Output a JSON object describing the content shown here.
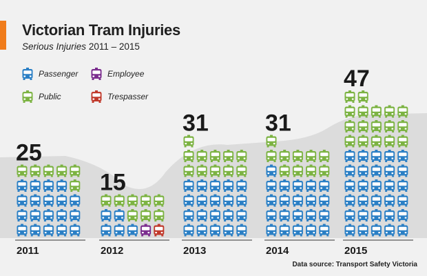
{
  "chart_data": {
    "type": "bar",
    "title": "Victorian Tram Injuries",
    "subtitle_label": "Serious Injuries",
    "subtitle_years": "2011 – 2015",
    "categories": [
      "2011",
      "2012",
      "2013",
      "2014",
      "2015"
    ],
    "totals": [
      25,
      15,
      31,
      31,
      47
    ],
    "series": [
      {
        "name": "Passenger",
        "color": "#2a7fc5",
        "values": [
          19,
          5,
          20,
          21,
          30
        ]
      },
      {
        "name": "Public",
        "color": "#7cb342",
        "values": [
          6,
          8,
          11,
          10,
          17
        ]
      },
      {
        "name": "Employee",
        "color": "#7b2d8e",
        "values": [
          0,
          1,
          0,
          0,
          0
        ]
      },
      {
        "name": "Trespasser",
        "color": "#c0392b",
        "values": [
          0,
          1,
          0,
          0,
          0
        ]
      }
    ],
    "icon": "tram-icon",
    "legend_position": "top-left"
  },
  "source": "Data source: Transport Safety Victoria"
}
